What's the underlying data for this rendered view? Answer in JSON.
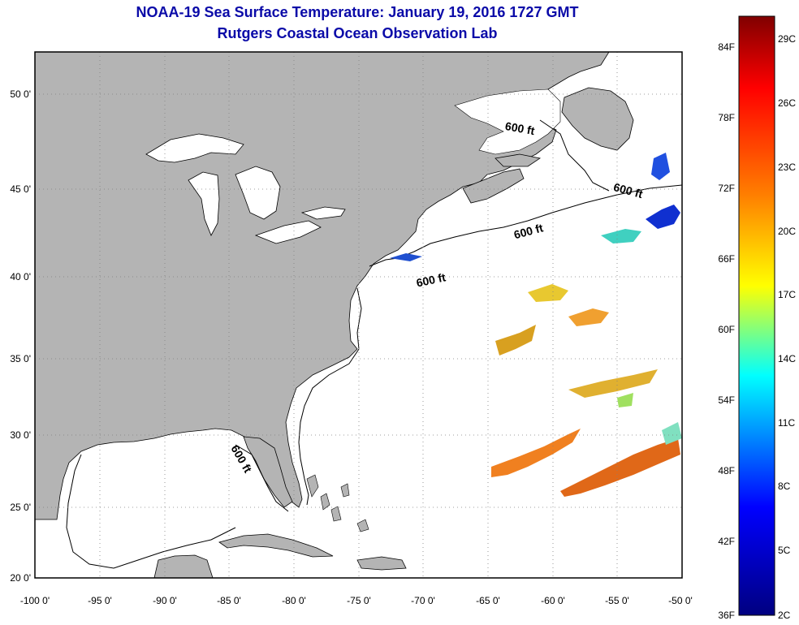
{
  "title": "NOAA-19 Sea Surface Temperature:  January 19, 2016 1727 GMT",
  "subtitle": "Rutgers Coastal Ocean Observation Lab",
  "map": {
    "lat_labels": [
      "50 0'",
      "45 0'",
      "40 0'",
      "35 0'",
      "30 0'",
      "25 0'",
      "20 0'"
    ],
    "lon_labels": [
      "-100 0'",
      "-95 0'",
      "-90 0'",
      "-85 0'",
      "-80 0'",
      "-75 0'",
      "-70 0'",
      "-65 0'",
      "-60 0'",
      "-55 0'",
      "-50 0'"
    ],
    "isobath_labels": [
      "600 ft",
      "600 ft",
      "600 ft",
      "600 ft",
      "600 ft"
    ],
    "land_color": "#b4b4b4",
    "water_color": "#ffffff"
  },
  "colorbar": {
    "fahrenheit_labels": [
      "84F",
      "78F",
      "72F",
      "66F",
      "60F",
      "54F",
      "48F",
      "42F",
      "36F"
    ],
    "celsius_labels": [
      "29C",
      "26C",
      "23C",
      "20C",
      "17C",
      "14C",
      "11C",
      "8C",
      "5C",
      "2C"
    ],
    "colors": [
      "#800000",
      "#ff0000",
      "#ff8000",
      "#ffff00",
      "#00ffff",
      "#0000ff",
      "#000080"
    ]
  }
}
